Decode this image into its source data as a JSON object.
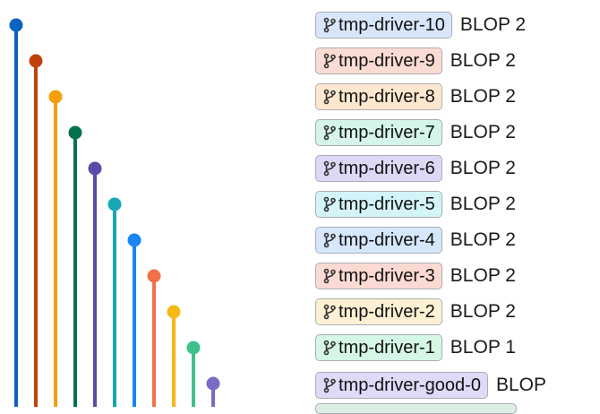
{
  "commits": [
    {
      "branch": "tmp-driver-10",
      "message": "BLOP 2",
      "lane_color": "#0b63c1",
      "tag_color": "#d7e6fa"
    },
    {
      "branch": "tmp-driver-9",
      "message": "BLOP 2",
      "lane_color": "#c0410b",
      "tag_color": "#fbdcd3"
    },
    {
      "branch": "tmp-driver-8",
      "message": "BLOP 2",
      "lane_color": "#f59e0b",
      "tag_color": "#fde8cf"
    },
    {
      "branch": "tmp-driver-7",
      "message": "BLOP 2",
      "lane_color": "#04714e",
      "tag_color": "#d4f5e8"
    },
    {
      "branch": "tmp-driver-6",
      "message": "BLOP 2",
      "lane_color": "#5b4ba8",
      "tag_color": "#dcd8f6"
    },
    {
      "branch": "tmp-driver-5",
      "message": "BLOP 2",
      "lane_color": "#16a7b7",
      "tag_color": "#d3f5f9"
    },
    {
      "branch": "tmp-driver-4",
      "message": "BLOP 2",
      "lane_color": "#1a85f5",
      "tag_color": "#d6e7fb"
    },
    {
      "branch": "tmp-driver-3",
      "message": "BLOP 2",
      "lane_color": "#f1714b",
      "tag_color": "#fcdad2"
    },
    {
      "branch": "tmp-driver-2",
      "message": "BLOP 2",
      "lane_color": "#f5b814",
      "tag_color": "#fdf1d3"
    },
    {
      "branch": "tmp-driver-1",
      "message": "BLOP 1",
      "lane_color": "#3fc18c",
      "tag_color": "#d5f7e6"
    },
    {
      "branch": "tmp-driver-good-0",
      "message": "BLOP",
      "lane_color": "#7a6ac4",
      "tag_color": "#dedaf8"
    }
  ],
  "icons": {
    "branch": "git-branch-icon"
  },
  "partial_row": {
    "tag_color": "#dcefe3"
  }
}
